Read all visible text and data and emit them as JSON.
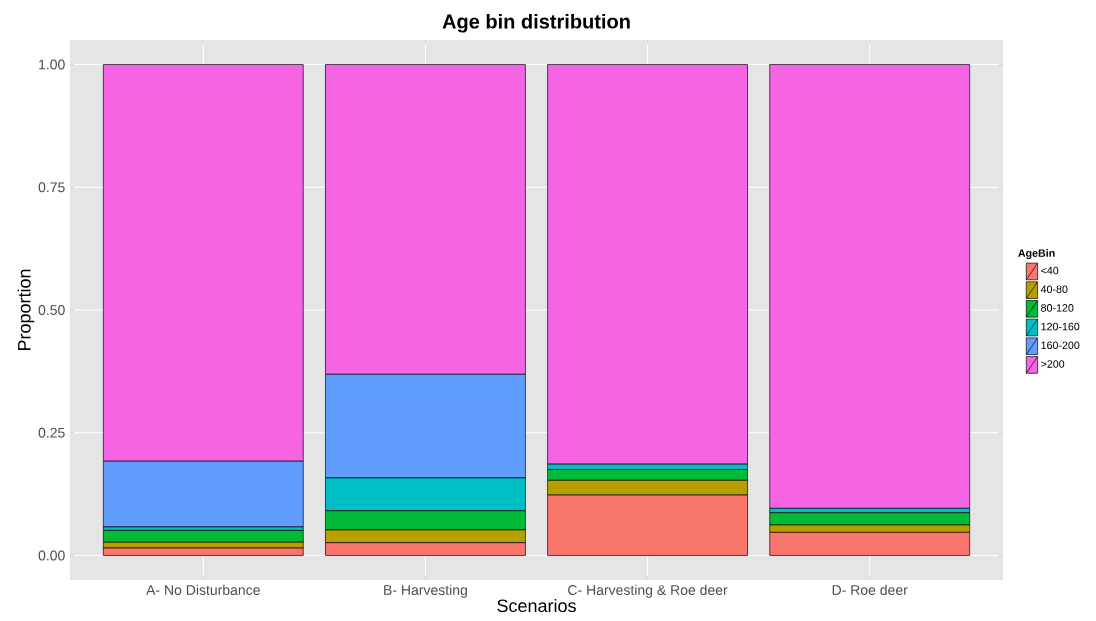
{
  "chart_data": {
    "type": "bar",
    "title": "Age bin distribution",
    "xlabel": "Scenarios",
    "ylabel": "Proportion",
    "legend_title": "AgeBin",
    "categories": [
      "A- No Disturbance",
      "B- Harvesting",
      "C- Harvesting & Roe deer",
      "D- Roe deer"
    ],
    "stacked": true,
    "series": [
      {
        "name": "<40",
        "color": "#f8766d",
        "values": [
          0.015,
          0.026,
          0.123,
          0.047
        ]
      },
      {
        "name": "40-80",
        "color": "#b79f00",
        "values": [
          0.012,
          0.026,
          0.03,
          0.015
        ]
      },
      {
        "name": "80-120",
        "color": "#00ba38",
        "values": [
          0.024,
          0.039,
          0.022,
          0.025
        ]
      },
      {
        "name": "120-160",
        "color": "#00bfc4",
        "values": [
          0.007,
          0.067,
          0.011,
          0.009
        ]
      },
      {
        "name": "160-200",
        "color": "#619cff",
        "values": [
          0.134,
          0.211,
          null,
          null
        ]
      },
      {
        "name": ">200",
        "color": "#f564e3",
        "values": [
          0.808,
          0.631,
          0.814,
          0.904
        ]
      }
    ],
    "ylim": [
      -0.05,
      1.05
    ],
    "yticks": [
      {
        "value": 0,
        "label": "0.00"
      },
      {
        "value": 0.25,
        "label": "0.25"
      },
      {
        "value": 0.5,
        "label": "0.50"
      },
      {
        "value": 0.75,
        "label": "0.75"
      },
      {
        "value": 1,
        "label": "1.00"
      }
    ],
    "grid": true,
    "legend": "right"
  }
}
